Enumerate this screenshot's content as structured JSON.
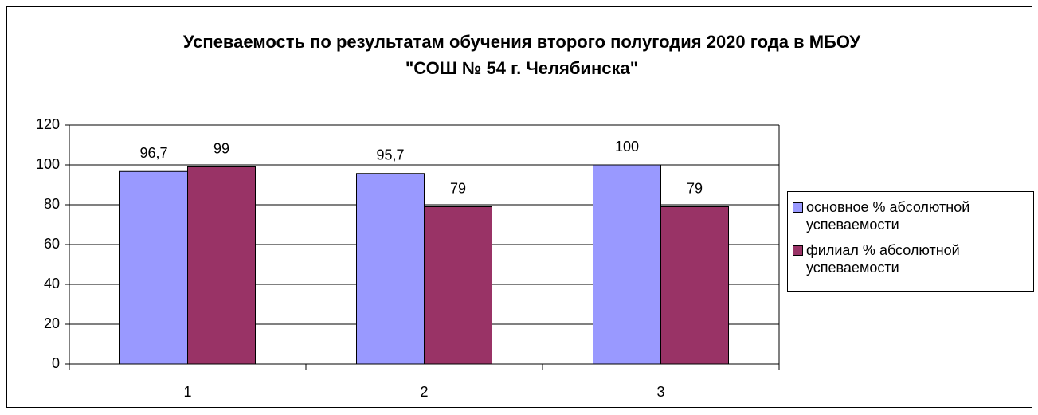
{
  "chart_data": {
    "type": "bar",
    "title": "Успеваемость по результатам обучения второго полугодия 2020 года в МБОУ \"СОШ № 54 г. Челябинска\"",
    "categories": [
      "1",
      "2",
      "3"
    ],
    "series": [
      {
        "name": "основное % абсолютной успеваемости",
        "color": "#9999ff",
        "values": [
          96.7,
          95.7,
          100
        ],
        "value_labels": [
          "96,7",
          "95,7",
          "100"
        ]
      },
      {
        "name": "филиал % абсолютной успеваемости",
        "color": "#993366",
        "values": [
          99,
          79,
          79
        ],
        "value_labels": [
          "99",
          "79",
          "79"
        ]
      }
    ],
    "ylim": [
      0,
      120
    ],
    "yticks": [
      0,
      20,
      40,
      60,
      80,
      100,
      120
    ],
    "grid": true,
    "legend": "right"
  }
}
